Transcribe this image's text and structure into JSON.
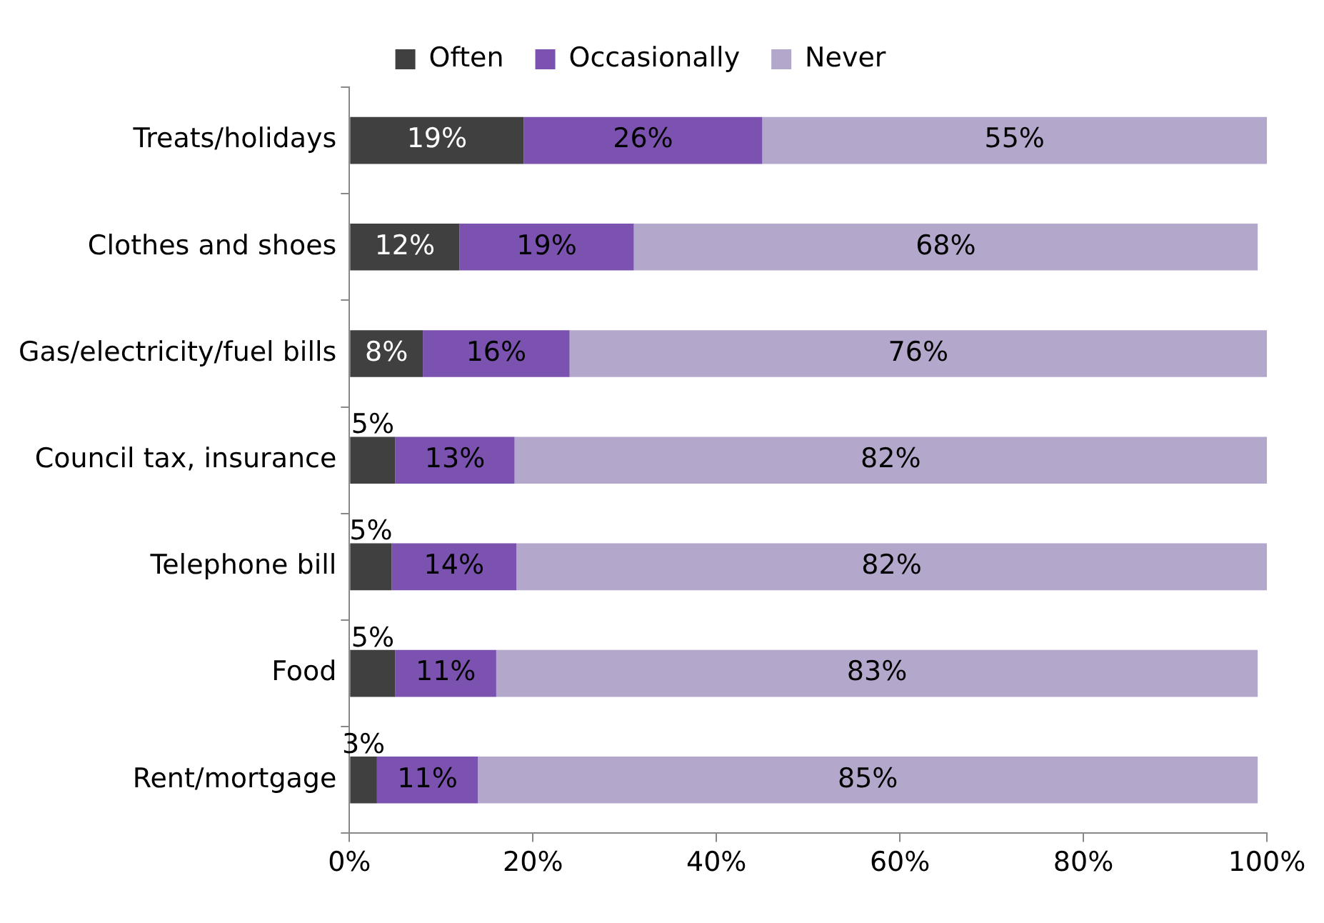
{
  "chart_data": {
    "type": "bar",
    "orientation": "horizontal",
    "stacked": true,
    "categories": [
      "Treats/holidays",
      "Clothes and shoes",
      "Gas/electricity/fuel bills",
      "Council tax, insurance",
      "Telephone bill",
      "Food",
      "Rent/mortgage"
    ],
    "series": [
      {
        "name": "Often",
        "color": "#404040",
        "values": [
          19,
          12,
          8,
          5,
          4.6,
          5,
          3
        ],
        "value_labels": [
          "19%",
          "12%",
          "8%",
          "5%",
          "5%",
          "5%",
          "3%"
        ]
      },
      {
        "name": "Occasionally",
        "color": "#7b52b0",
        "values": [
          26,
          19,
          16,
          13,
          13.6,
          11,
          11
        ],
        "value_labels": [
          "26%",
          "19%",
          "16%",
          "13%",
          "14%",
          "11%",
          "11%"
        ]
      },
      {
        "name": "Never",
        "color": "#b4a7cc",
        "values": [
          55,
          68,
          76,
          82,
          81.8,
          83,
          85
        ],
        "value_labels": [
          "55%",
          "68%",
          "76%",
          "82%",
          "82%",
          "83%",
          "85%"
        ]
      }
    ],
    "xlim": [
      0,
      100
    ],
    "xticks": [
      {
        "value": 0,
        "label": "0%"
      },
      {
        "value": 20,
        "label": "20%"
      },
      {
        "value": 40,
        "label": "40%"
      },
      {
        "value": 60,
        "label": "60%"
      },
      {
        "value": 80,
        "label": "80%"
      },
      {
        "value": 100,
        "label": "100%"
      }
    ],
    "legend": "top",
    "grid": false
  }
}
